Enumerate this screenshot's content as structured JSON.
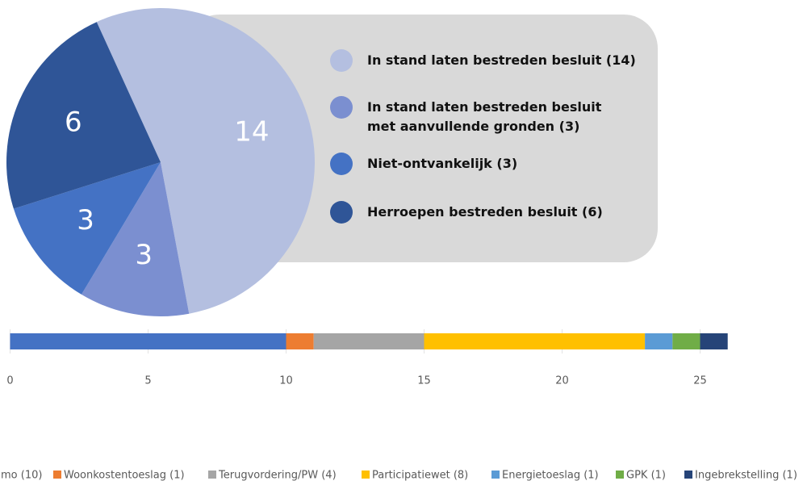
{
  "chart_data": [
    {
      "type": "pie",
      "categories": [
        "In stand laten bestreden besluit (14)",
        "In stand laten bestreden besluit\nmet aanvullende gronden (3)",
        "Niet-ontvankelijk (3)",
        "Herroepen bestreden besluit (6)"
      ],
      "values": [
        14,
        3,
        3,
        6
      ],
      "colors": [
        "#b4bfe0",
        "#7b8fd0",
        "#4472c4",
        "#2f5597"
      ]
    },
    {
      "type": "stacked_bar",
      "xlim": [
        0,
        26
      ],
      "xticks": [
        0,
        5,
        10,
        15,
        20,
        25
      ],
      "grid": true,
      "series": [
        {
          "name": "mo (10)",
          "color": "#4472c4",
          "values": [
            10
          ]
        },
        {
          "name": "Woonkostentoeslag (1)",
          "color": "#ed7d31",
          "values": [
            1
          ]
        },
        {
          "name": "Terugvordering/PW (4)",
          "color": "#a5a5a5",
          "values": [
            4
          ]
        },
        {
          "name": "Participatiewet (8)",
          "color": "#ffc000",
          "values": [
            8
          ]
        },
        {
          "name": "Energietoeslag (1)",
          "color": "#5b9bd5",
          "values": [
            1
          ]
        },
        {
          "name": "GPK (1)",
          "color": "#70ad47",
          "values": [
            1
          ]
        },
        {
          "name": "Ingebrekstelling (1)",
          "color": "#264478",
          "values": [
            1
          ]
        }
      ]
    }
  ]
}
